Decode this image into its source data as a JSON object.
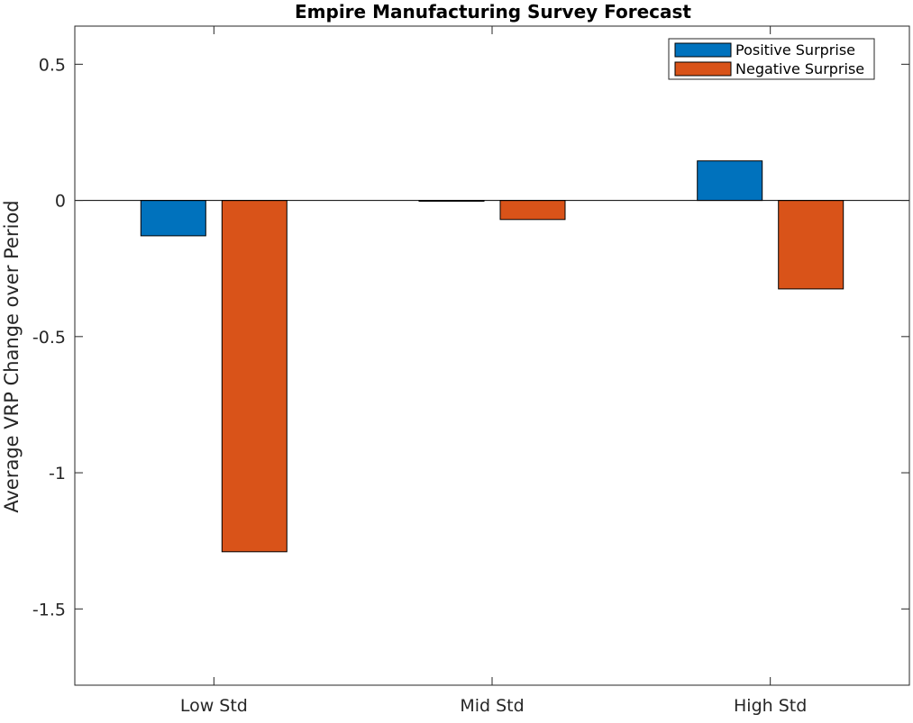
{
  "chart_data": {
    "type": "bar",
    "title": "Empire Manufacturing Survey Forecast",
    "xlabel": "",
    "ylabel": "Average VRP Change over Period",
    "categories": [
      "Low Std",
      "Mid Std",
      "High Std"
    ],
    "series": [
      {
        "name": "Positive Surprise",
        "color": "#0072bd",
        "values": [
          -0.13,
          -0.003,
          0.145
        ]
      },
      {
        "name": "Negative Surprise",
        "color": "#d95319",
        "values": [
          -1.29,
          -0.07,
          -0.325
        ]
      }
    ],
    "ylim": [
      -1.78,
      0.64
    ],
    "yticks": [
      0.5,
      0,
      -0.5,
      -1,
      -1.5
    ],
    "ytick_labels": [
      "0.5",
      "0",
      "-0.5",
      "-1",
      "-1.5"
    ],
    "grid": false,
    "legend_position": "top-right"
  }
}
